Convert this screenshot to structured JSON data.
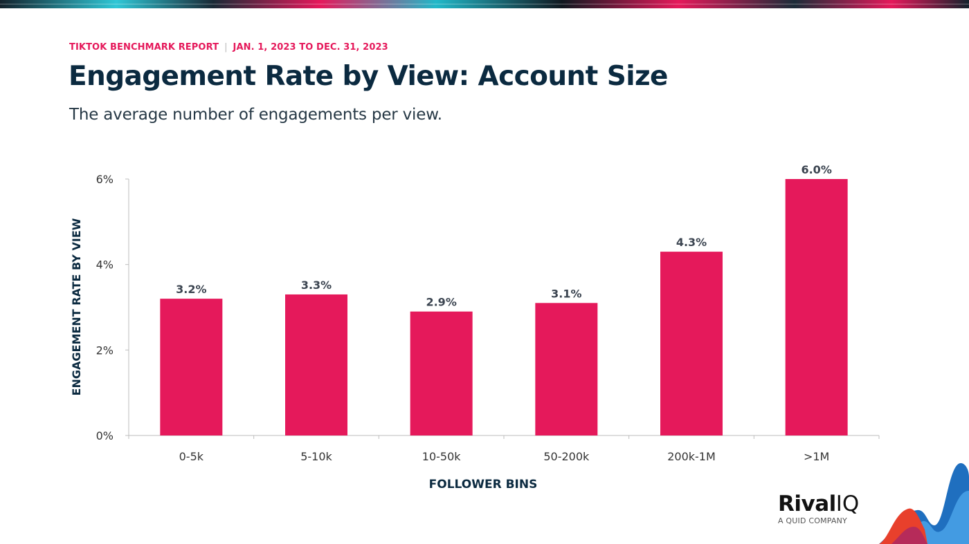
{
  "header": {
    "eyebrow_report": "TIKTOK BENCHMARK REPORT",
    "eyebrow_separator": "|",
    "eyebrow_dates": "JAN. 1, 2023 TO DEC. 31, 2023",
    "title": "Engagement Rate by View: Account Size",
    "subtitle": "The average number of engagements per view."
  },
  "logo": {
    "brand_first": "Rival",
    "brand_second": "IQ",
    "tagline": "A QUID COMPANY"
  },
  "colors": {
    "accent": "#e5195b",
    "title": "#0b2a40",
    "bar": "#e5195b"
  },
  "chart_data": {
    "type": "bar",
    "xlabel": "FOLLOWER BINS",
    "ylabel": "ENGAGEMENT RATE BY VIEW",
    "categories": [
      "0-5k",
      "5-10k",
      "10-50k",
      "50-200k",
      "200k-1M",
      ">1M"
    ],
    "values": [
      3.2,
      3.3,
      2.9,
      3.1,
      4.3,
      6.0
    ],
    "data_labels": [
      "3.2%",
      "3.3%",
      "2.9%",
      "3.1%",
      "4.3%",
      "6.0%"
    ],
    "ylim": [
      0,
      6
    ],
    "yticks": [
      0,
      2,
      4,
      6
    ],
    "ytick_labels": [
      "0%",
      "2%",
      "4%",
      "6%"
    ],
    "grid": false,
    "legend": "none"
  }
}
